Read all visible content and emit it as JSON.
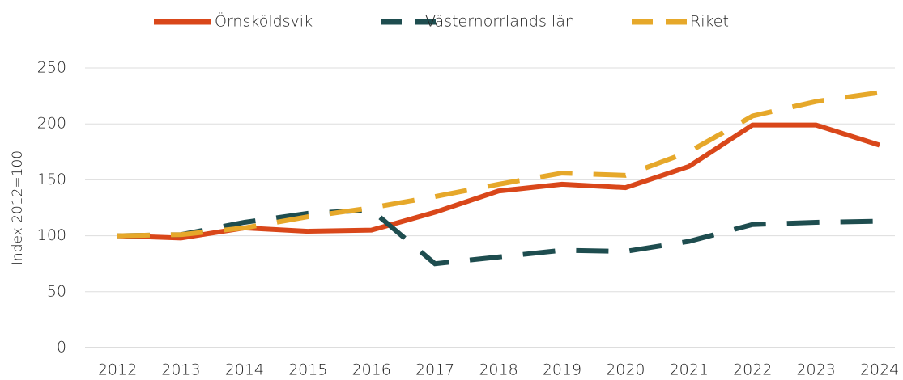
{
  "chart_data": {
    "type": "line",
    "y_label": "Index 2012=100",
    "categories": [
      "2012",
      "2013",
      "2014",
      "2015",
      "2016",
      "2017",
      "2018",
      "2019",
      "2020",
      "2021",
      "2022",
      "2023",
      "2024"
    ],
    "series": [
      {
        "name": "Örnsköldsvik",
        "color": "#d9471a",
        "dash": false,
        "values": [
          100,
          98,
          107,
          104,
          105,
          121,
          140,
          146,
          143,
          162,
          199,
          199,
          181
        ]
      },
      {
        "name": "Västernorrlands län",
        "color": "#1e4d4f",
        "dash": true,
        "values": [
          100,
          101,
          112,
          120,
          123,
          75,
          81,
          87,
          86,
          95,
          110,
          112,
          113
        ]
      },
      {
        "name": "Riket",
        "color": "#e6a82a",
        "dash": true,
        "values": [
          100,
          101,
          107,
          117,
          125,
          135,
          146,
          156,
          154,
          175,
          207,
          220,
          228
        ]
      }
    ],
    "ylim": [
      0,
      250
    ],
    "yticks": [
      0,
      50,
      100,
      150,
      200,
      250
    ],
    "grid": true,
    "legend": "top"
  }
}
